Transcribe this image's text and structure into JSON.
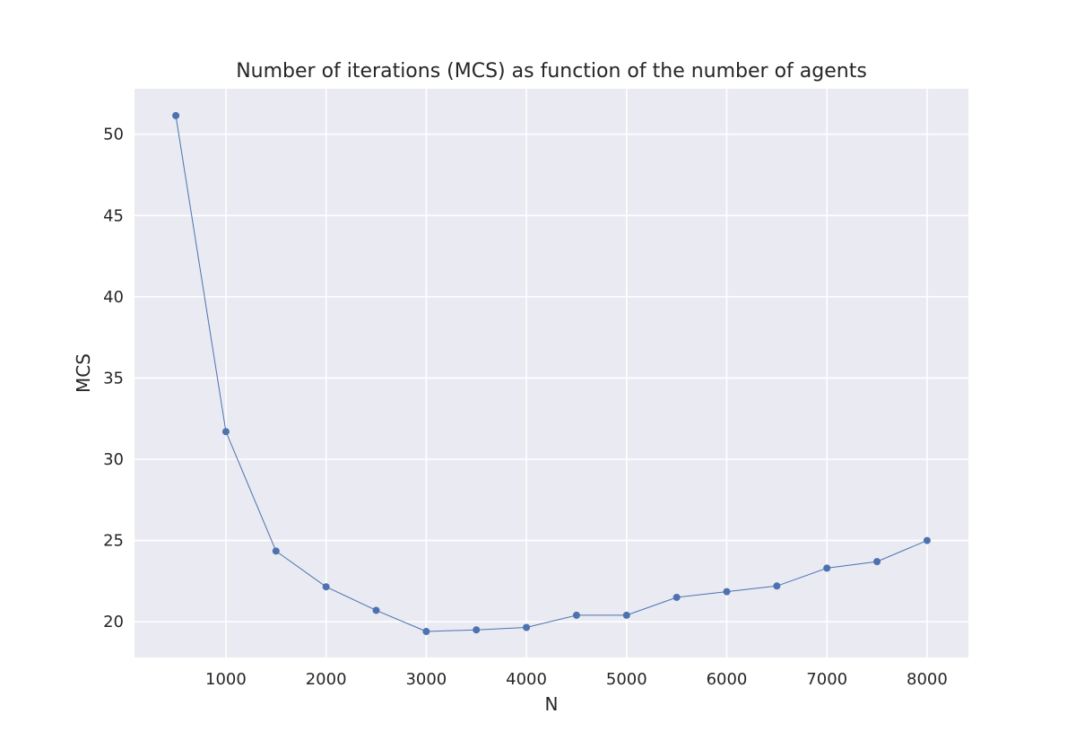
{
  "chart_data": {
    "type": "line",
    "title": "Number of iterations (MCS) as function of the number of agents",
    "xlabel": "N",
    "ylabel": "MCS",
    "x": [
      500,
      1000,
      1500,
      2000,
      2500,
      3000,
      3500,
      4000,
      4500,
      5000,
      5500,
      6000,
      6500,
      7000,
      7500,
      8000
    ],
    "series": [
      {
        "values": [
          51.15,
          31.7,
          24.35,
          22.15,
          20.7,
          19.4,
          19.5,
          19.65,
          20.4,
          20.4,
          21.5,
          21.85,
          22.2,
          23.3,
          23.7,
          25.0
        ],
        "color": "#4c72b0",
        "marker": "circle"
      }
    ],
    "xlim": [
      87.5,
      8412.5
    ],
    "ylim": [
      17.8,
      52.8
    ],
    "xticks": [
      1000,
      2000,
      3000,
      4000,
      5000,
      6000,
      7000,
      8000
    ],
    "yticks": [
      20,
      25,
      30,
      35,
      40,
      45,
      50
    ],
    "grid": true,
    "background_color": "#eaeaf2",
    "grid_color": "#ffffff"
  }
}
